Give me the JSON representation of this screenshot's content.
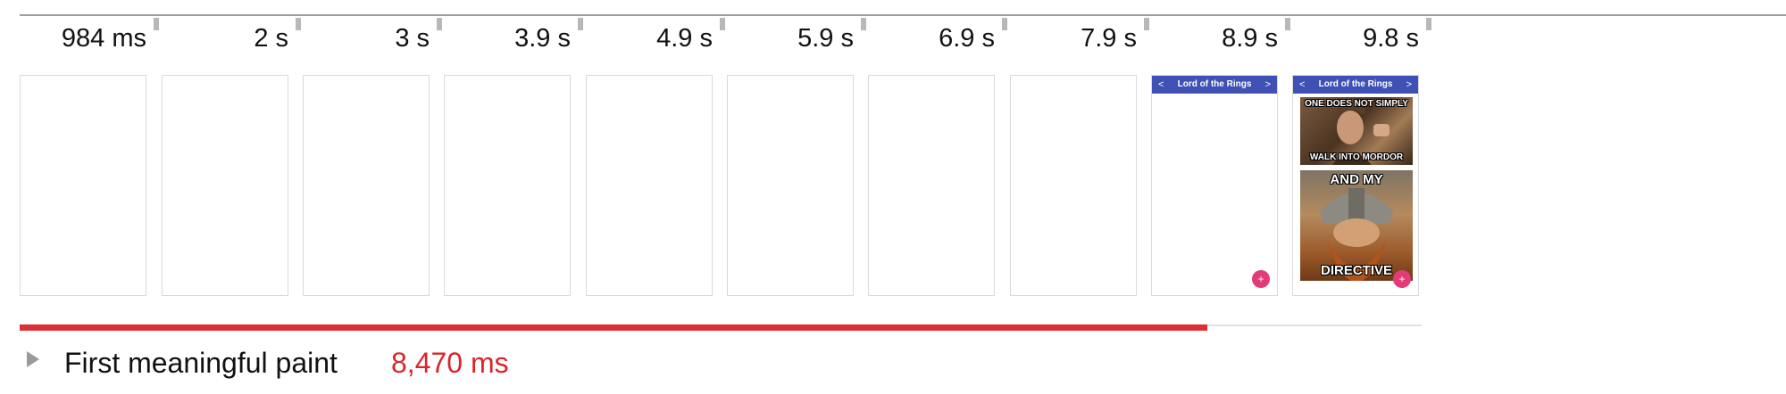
{
  "filmstrip": {
    "frames": [
      {
        "time": "984 ms",
        "content": "blank"
      },
      {
        "time": "2 s",
        "content": "blank"
      },
      {
        "time": "3 s",
        "content": "blank"
      },
      {
        "time": "3.9 s",
        "content": "blank"
      },
      {
        "time": "4.9 s",
        "content": "blank"
      },
      {
        "time": "5.9 s",
        "content": "blank"
      },
      {
        "time": "6.9 s",
        "content": "blank"
      },
      {
        "time": "7.9 s",
        "content": "blank"
      },
      {
        "time": "8.9 s",
        "content": "app-bar"
      },
      {
        "time": "9.8 s",
        "content": "app-bar-with-memes"
      }
    ],
    "app_bar_title": "Lord of the Rings",
    "app_bar_prev": "<",
    "app_bar_next": ">",
    "fab_symbol": "+",
    "meme_one": {
      "top": "ONE DOES NOT SIMPLY",
      "bottom": "WALK INTO MORDOR"
    },
    "meme_two": {
      "top": "AND MY",
      "bottom": "DIRECTIVE"
    }
  },
  "metric": {
    "label": "First meaningful paint",
    "value": "8,470 ms",
    "progress_fraction": 0.847
  },
  "colors": {
    "metric_value": "#d8262b",
    "progress_fill": "#dc3034",
    "app_bar": "#3f51b5",
    "fab": "#e53a78"
  }
}
